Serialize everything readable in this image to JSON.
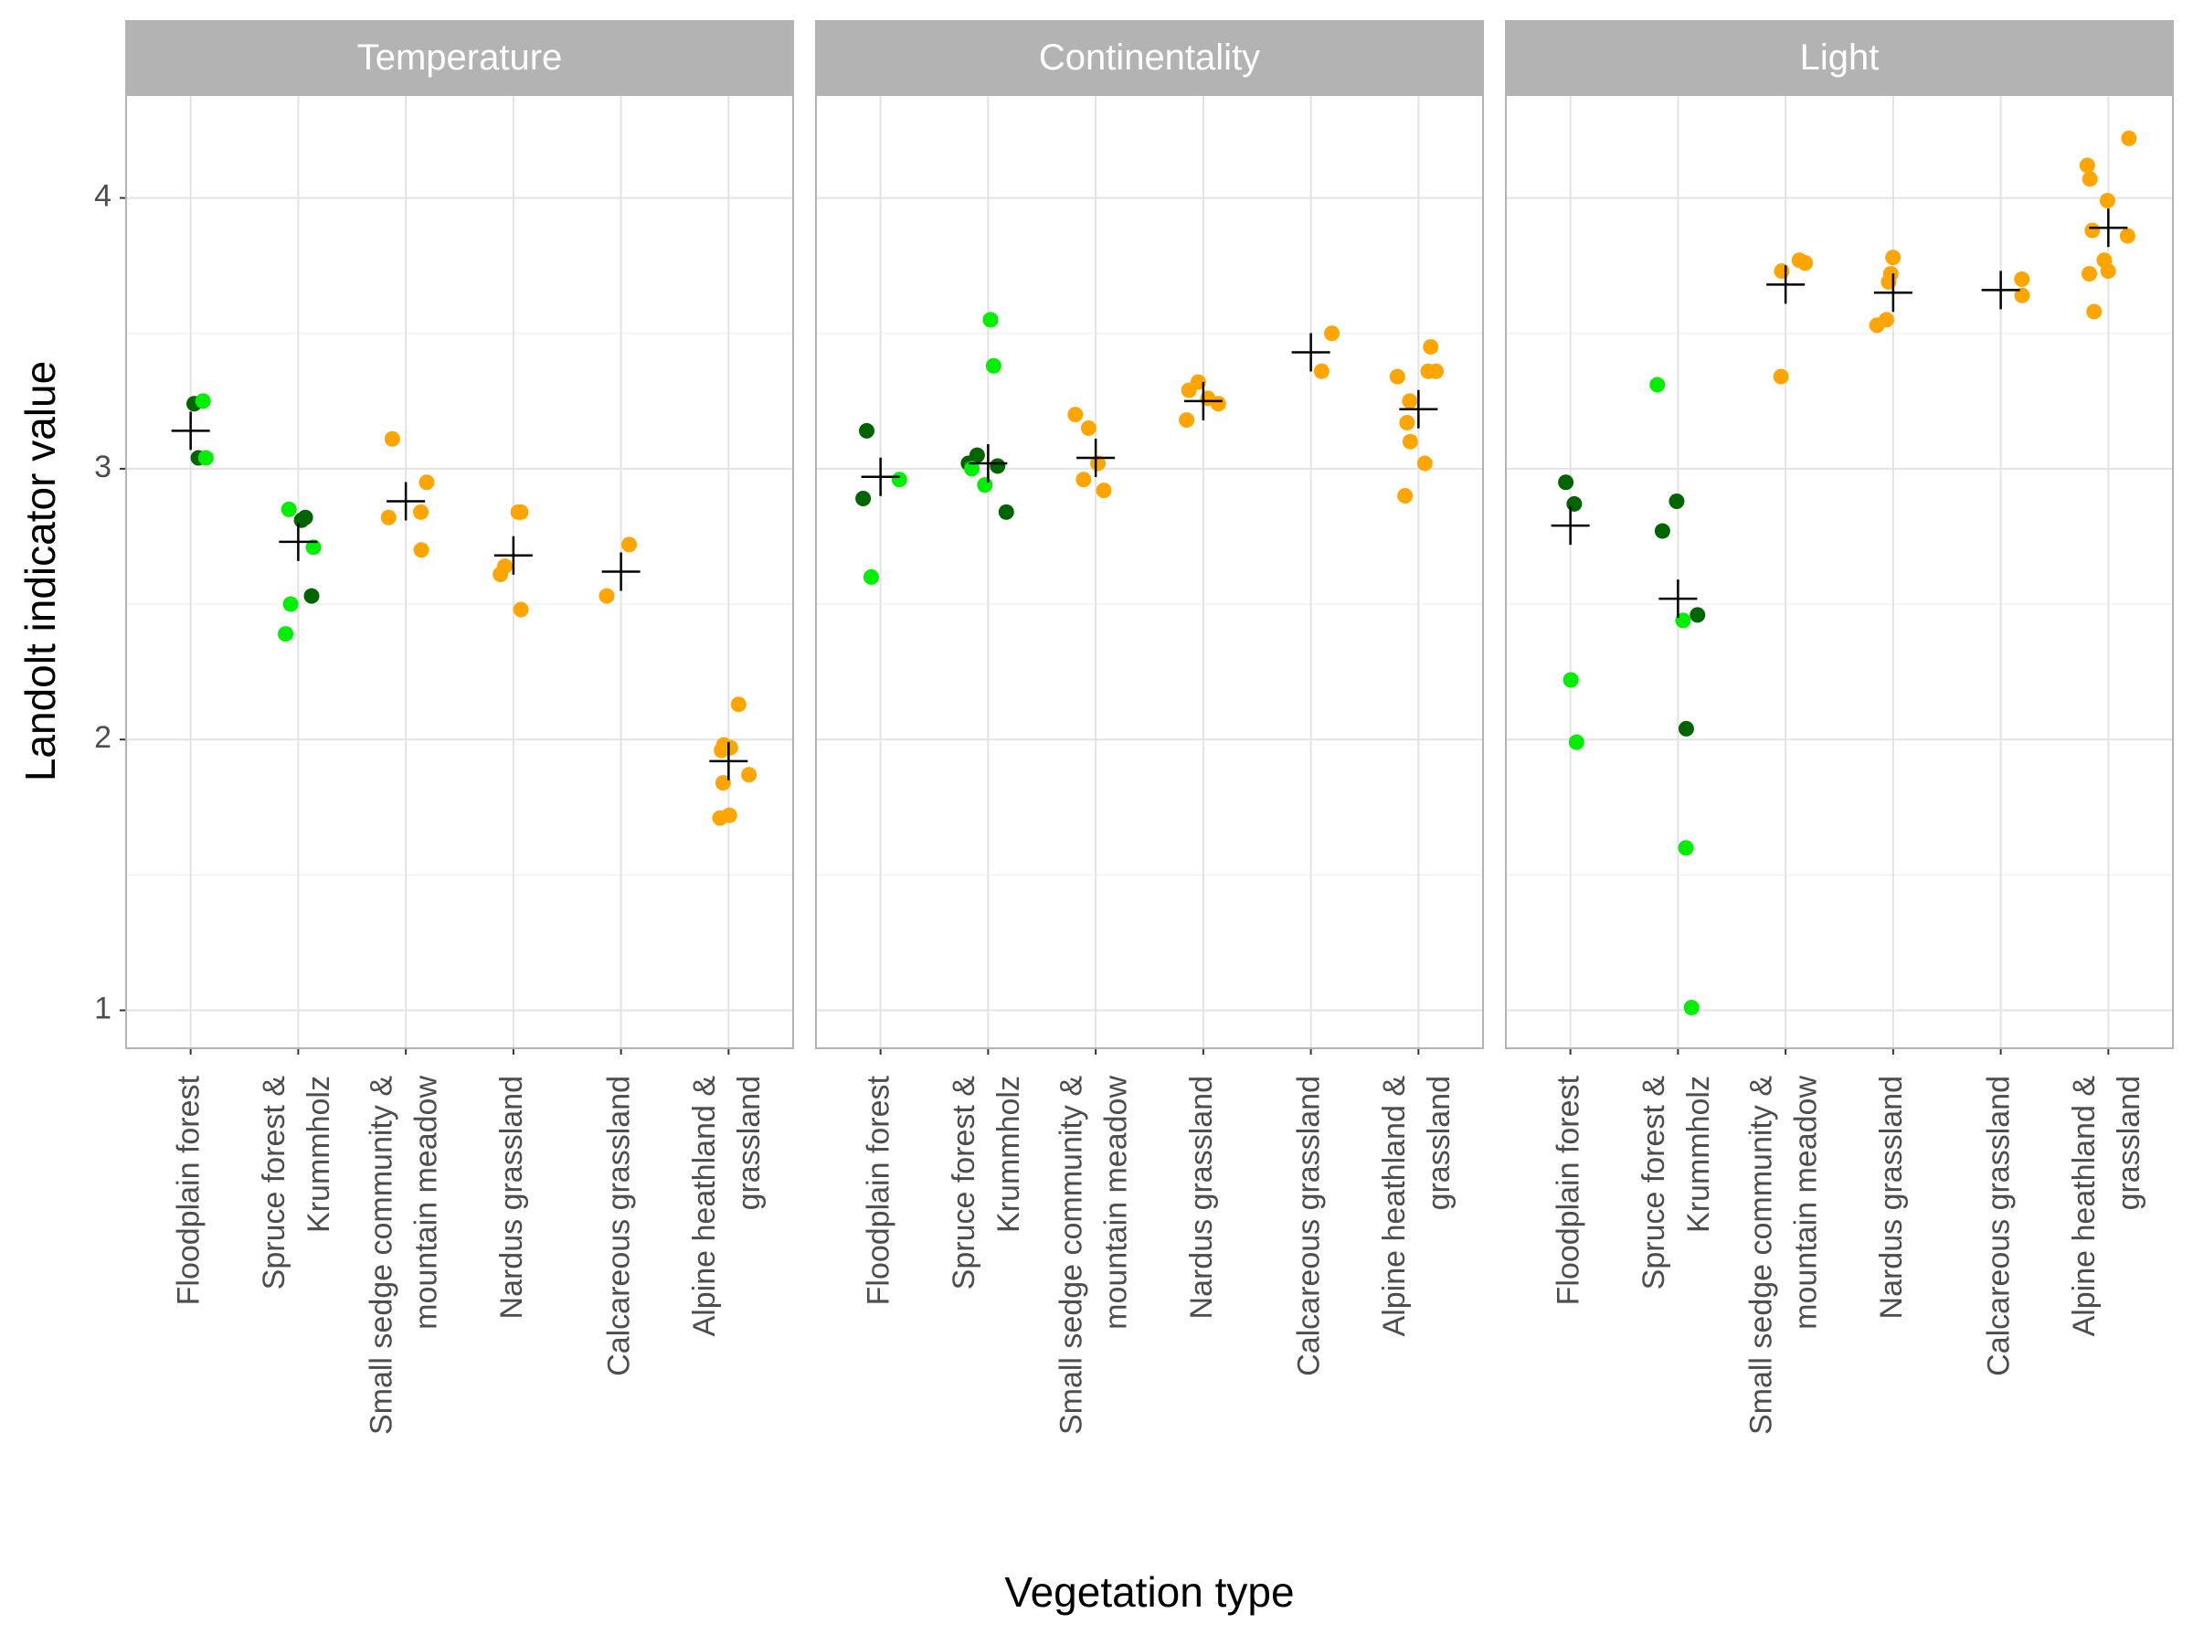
{
  "chart_data": {
    "type": "strip",
    "ylabel": "Landolt indicator value",
    "xlabel": "Vegetation type",
    "ylim": [
      0.86,
      4.38
    ],
    "yticks": [
      1,
      2,
      3,
      4
    ],
    "yminor": [
      1.5,
      2.5,
      3.5
    ],
    "grid": true,
    "categories": [
      [
        "Floodplain forest"
      ],
      [
        "Spruce forest &",
        "Krummholz"
      ],
      [
        "Small sedge community &",
        "mountain meadow"
      ],
      [
        "Nardus grassland"
      ],
      [
        "Calcareous grassland"
      ],
      [
        "Alpine heathland &",
        "grassland"
      ]
    ],
    "facets": [
      {
        "title": "Temperature",
        "series": [
          {
            "color": "#006400",
            "values": [
              [
                3.24,
                3.04
              ],
              [
                2.81,
                2.82,
                2.53
              ],
              [],
              [],
              [],
              []
            ]
          },
          {
            "color": "#00ee00",
            "values": [
              [
                3.25,
                3.04
              ],
              [
                2.85,
                2.71,
                2.5,
                2.39
              ],
              [],
              [],
              [],
              []
            ]
          },
          {
            "color": "#ffa500",
            "values": [
              [],
              [],
              [
                2.95,
                3.11,
                2.82,
                2.84,
                2.7
              ],
              [
                2.84,
                2.84,
                2.64,
                2.61,
                2.48
              ],
              [
                2.72,
                2.53
              ],
              [
                2.13,
                1.97,
                1.98,
                1.96,
                1.87,
                1.84,
                1.72,
                1.71
              ]
            ]
          }
        ],
        "means": [
          3.14,
          2.73,
          2.88,
          2.68,
          2.62,
          1.92
        ]
      },
      {
        "title": "Continentality",
        "series": [
          {
            "color": "#006400",
            "values": [
              [
                3.14,
                2.89
              ],
              [
                3.05,
                3.02,
                3.01,
                2.84
              ],
              [],
              [],
              [],
              []
            ]
          },
          {
            "color": "#00ee00",
            "values": [
              [
                2.96,
                2.6
              ],
              [
                3.55,
                3.38,
                3.0,
                2.94
              ],
              [],
              [],
              [],
              []
            ]
          },
          {
            "color": "#ffa500",
            "values": [
              [],
              [],
              [
                3.2,
                3.15,
                3.02,
                2.96,
                2.92
              ],
              [
                3.32,
                3.29,
                3.26,
                3.24,
                3.18
              ],
              [
                3.5,
                3.36
              ],
              [
                3.45,
                3.36,
                3.36,
                3.34,
                3.25,
                3.17,
                3.1,
                3.02,
                2.9
              ]
            ]
          }
        ],
        "means": [
          2.97,
          3.02,
          3.04,
          3.25,
          3.43,
          3.22
        ]
      },
      {
        "title": "Light",
        "series": [
          {
            "color": "#006400",
            "values": [
              [
                2.95,
                2.87
              ],
              [
                2.88,
                2.77,
                2.46,
                2.04
              ],
              [],
              [],
              [],
              []
            ]
          },
          {
            "color": "#00ee00",
            "values": [
              [
                2.22,
                1.99
              ],
              [
                3.31,
                2.44,
                1.6,
                1.01
              ],
              [],
              [],
              [],
              []
            ]
          },
          {
            "color": "#ffa500",
            "values": [
              [],
              [],
              [
                3.76,
                3.77,
                3.76,
                3.73,
                3.34
              ],
              [
                3.78,
                3.72,
                3.69,
                3.55,
                3.53
              ],
              [
                3.7,
                3.64
              ],
              [
                4.22,
                4.12,
                4.07,
                3.99,
                3.88,
                3.86,
                3.77,
                3.73,
                3.72,
                3.58
              ]
            ]
          }
        ],
        "means": [
          2.79,
          2.52,
          3.68,
          3.65,
          3.66,
          3.89
        ]
      }
    ]
  }
}
